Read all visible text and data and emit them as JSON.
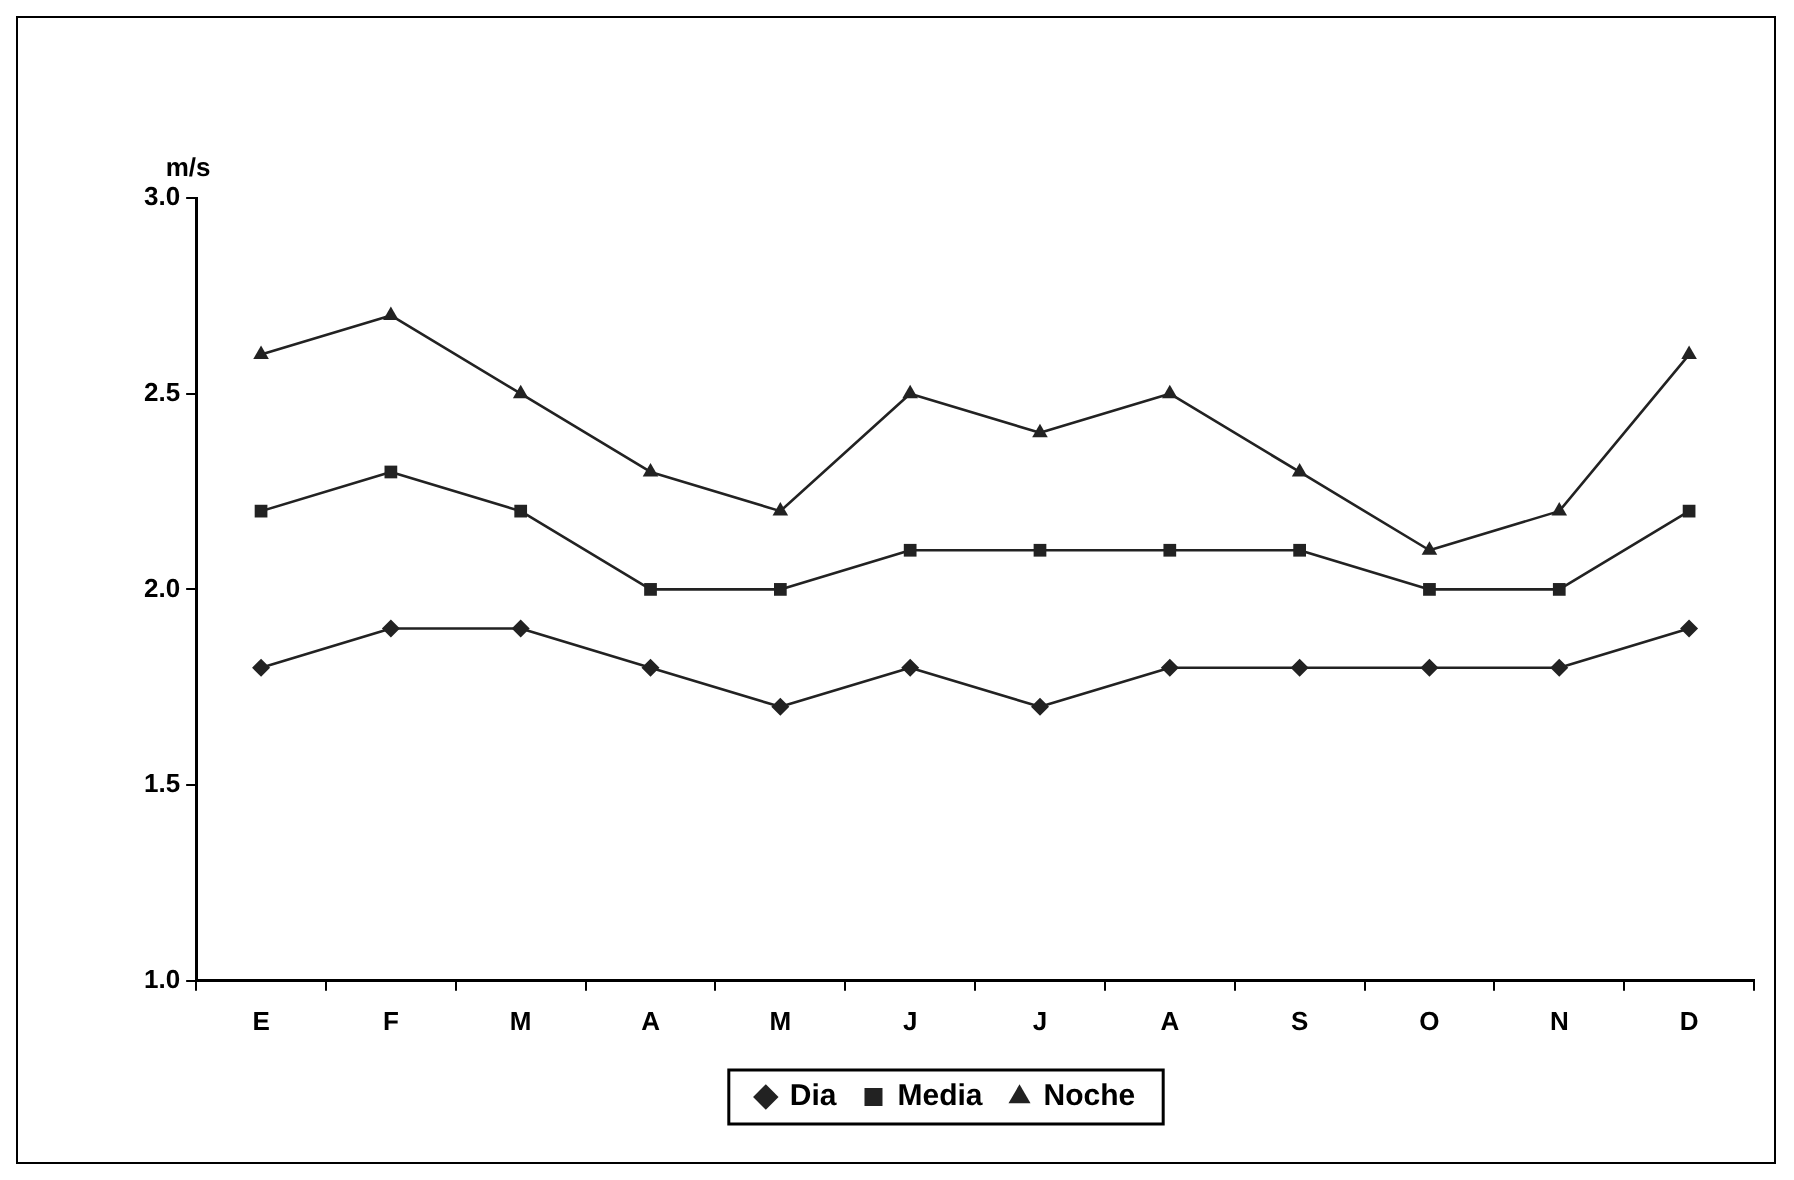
{
  "chart_data": {
    "type": "line",
    "ylabel": "m/s",
    "categories": [
      "E",
      "F",
      "M",
      "A",
      "M",
      "J",
      "J",
      "A",
      "S",
      "O",
      "N",
      "D"
    ],
    "series": [
      {
        "name": "Dia",
        "color": "#222222",
        "marker": "diamond",
        "values": [
          1.8,
          1.9,
          1.9,
          1.8,
          1.7,
          1.8,
          1.7,
          1.8,
          1.8,
          1.8,
          1.8,
          1.9
        ]
      },
      {
        "name": "Media",
        "color": "#222222",
        "marker": "square",
        "values": [
          2.2,
          2.3,
          2.2,
          2.0,
          2.0,
          2.1,
          2.1,
          2.1,
          2.1,
          2.0,
          2.0,
          2.2
        ]
      },
      {
        "name": "Noche",
        "color": "#222222",
        "marker": "triangle",
        "values": [
          2.6,
          2.7,
          2.5,
          2.3,
          2.2,
          2.5,
          2.4,
          2.5,
          2.3,
          2.1,
          2.2,
          2.6
        ]
      }
    ],
    "ylim": [
      1.0,
      3.0
    ],
    "yticks": [
      {
        "value": 1,
        "label": "1.0"
      },
      {
        "value": 1.5,
        "label": "1.5"
      },
      {
        "value": 2,
        "label": "2.0"
      },
      {
        "value": 2.5,
        "label": "2.5"
      },
      {
        "value": 3,
        "label": "3.0"
      }
    ],
    "grid": false,
    "legend": "bottom",
    "line_style": "solid"
  }
}
